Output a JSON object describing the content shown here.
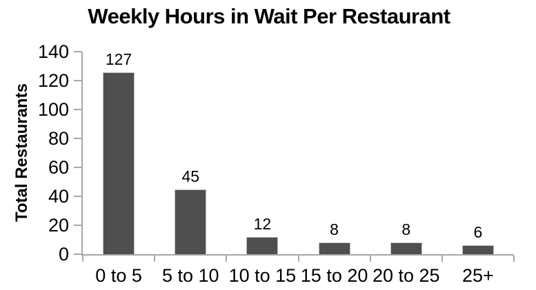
{
  "chart_data": {
    "type": "bar",
    "title": "Weekly Hours in Wait Per Restaurant",
    "xlabel": "",
    "ylabel": "Total Restaurants",
    "categories": [
      "0 to 5",
      "5 to 10",
      "10 to 15",
      "15 to 20",
      "20 to 25",
      "25+"
    ],
    "values": [
      127,
      45,
      12,
      8,
      8,
      6
    ],
    "yticks": [
      0,
      20,
      40,
      60,
      80,
      100,
      120,
      140
    ],
    "ylim": [
      0,
      140
    ],
    "grid": false,
    "legend": "none",
    "colors": {
      "bar_fill": "#4F4F4F",
      "bar_border": "#BFBFBF",
      "axis": "#A6A6A6",
      "text": "#000000",
      "background": "#FFFFFF"
    }
  }
}
